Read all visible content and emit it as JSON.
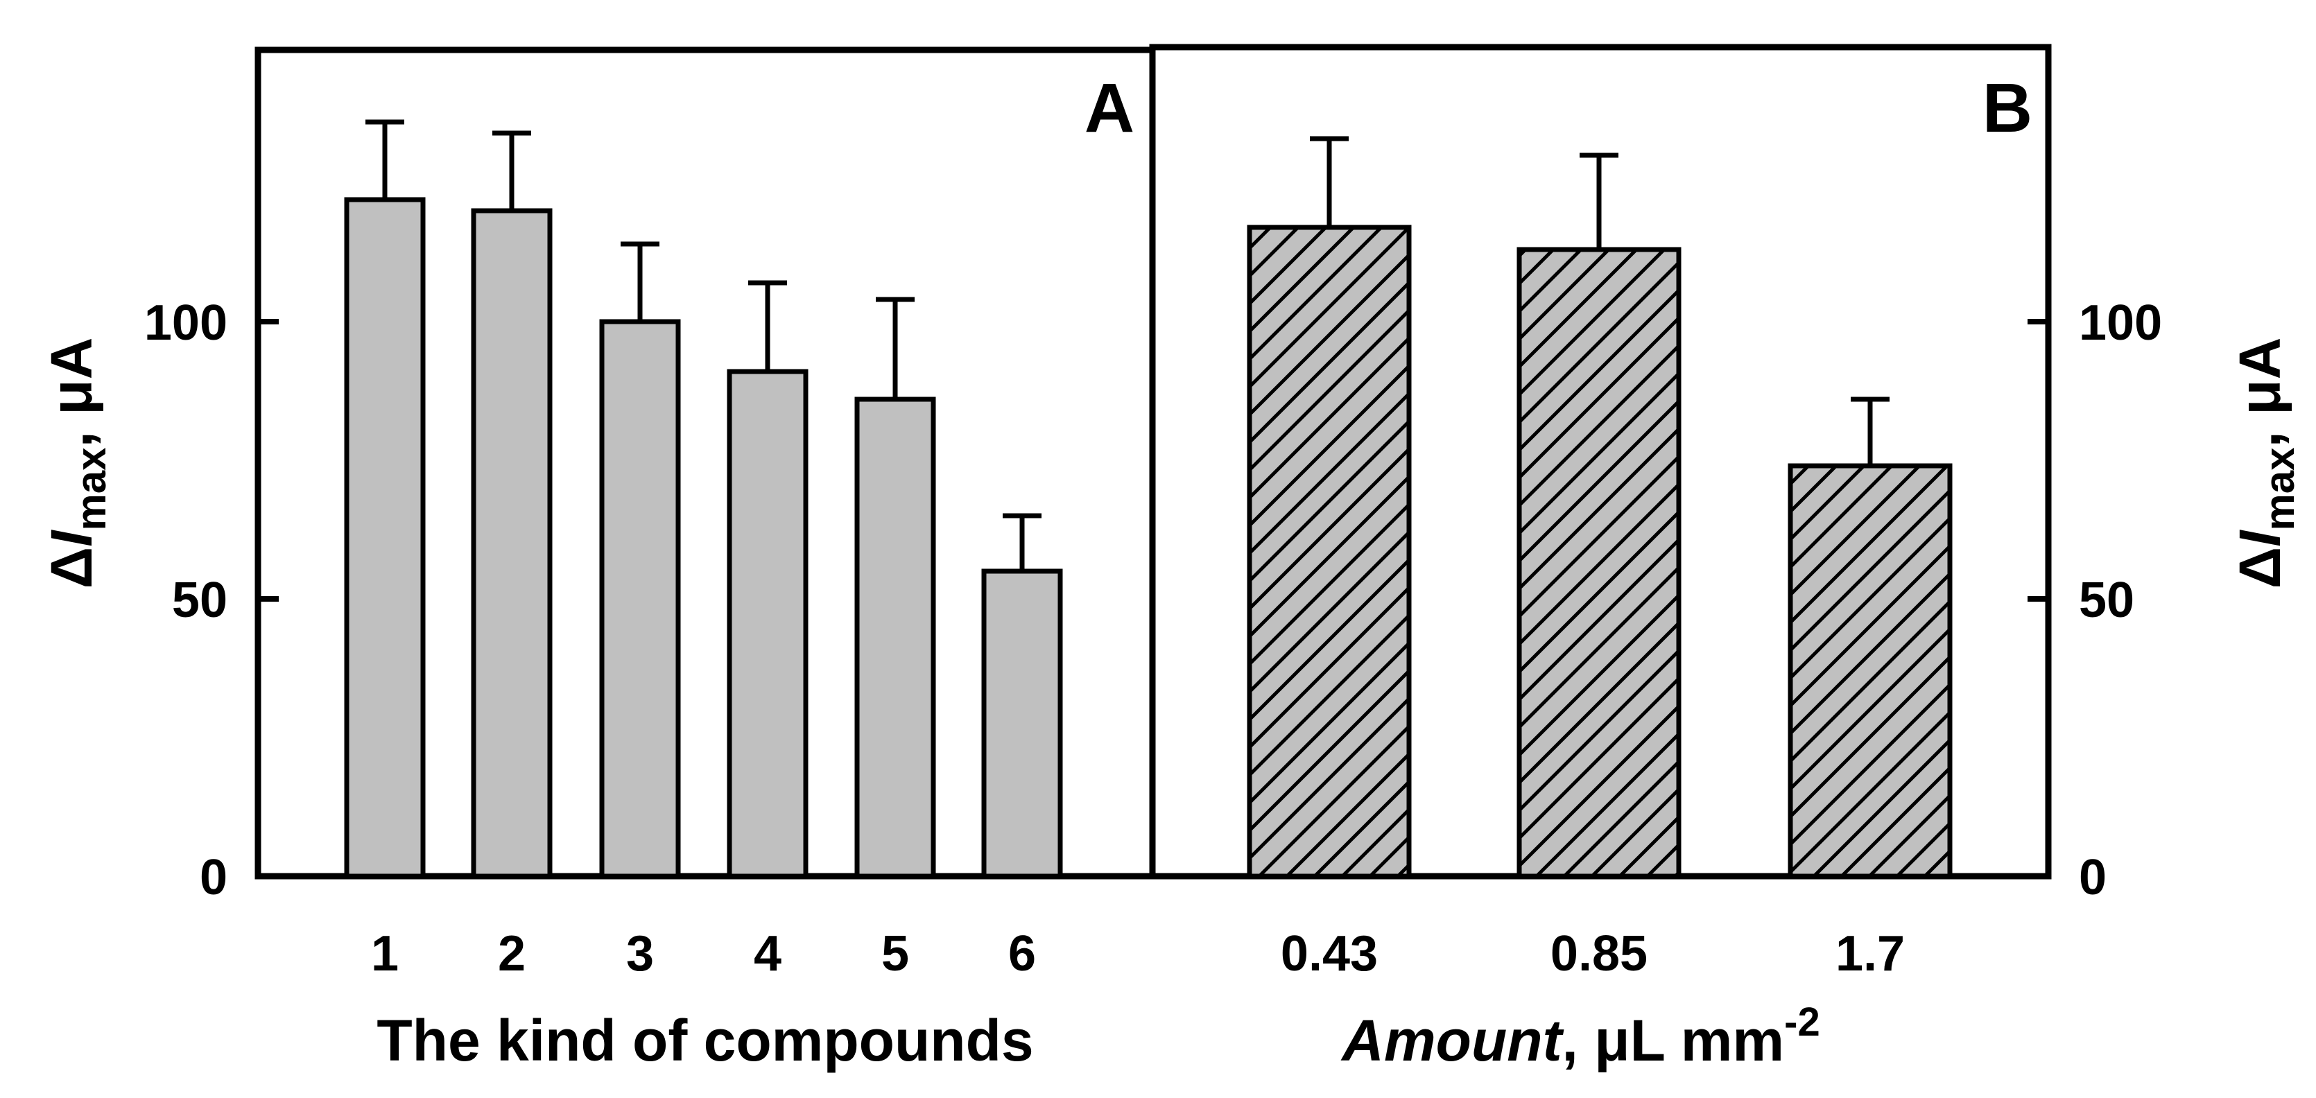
{
  "chart_data": [
    {
      "panel": "A",
      "type": "bar",
      "categories": [
        "1",
        "2",
        "3",
        "4",
        "5",
        "6"
      ],
      "values": [
        122,
        120,
        100,
        91,
        86,
        55
      ],
      "errors": [
        14,
        14,
        14,
        16,
        18,
        10
      ],
      "fill": "#c0c0c0",
      "pattern": "solid",
      "xlabel": "The kind of compounds",
      "ylabel": {
        "prefix": "Δ",
        "var": "I",
        "sub": "max",
        "unit": ", μA"
      },
      "ylim": [
        0,
        150
      ],
      "yticks": [
        0,
        50,
        100
      ]
    },
    {
      "panel": "B",
      "type": "bar",
      "categories": [
        "0.43",
        "0.85",
        "1.7"
      ],
      "values": [
        117,
        113,
        74
      ],
      "errors": [
        16,
        17,
        12
      ],
      "fill": "#c0c0c0",
      "pattern": "hatched",
      "xlabel": {
        "italic": "Amount",
        "rest": ", μL mm",
        "sup": "-2"
      },
      "ylabel": {
        "prefix": "Δ",
        "var": "I",
        "sub": "max",
        "unit": ", μA"
      },
      "ylim": [
        0,
        150
      ],
      "yticks": [
        0,
        50,
        100
      ]
    }
  ]
}
